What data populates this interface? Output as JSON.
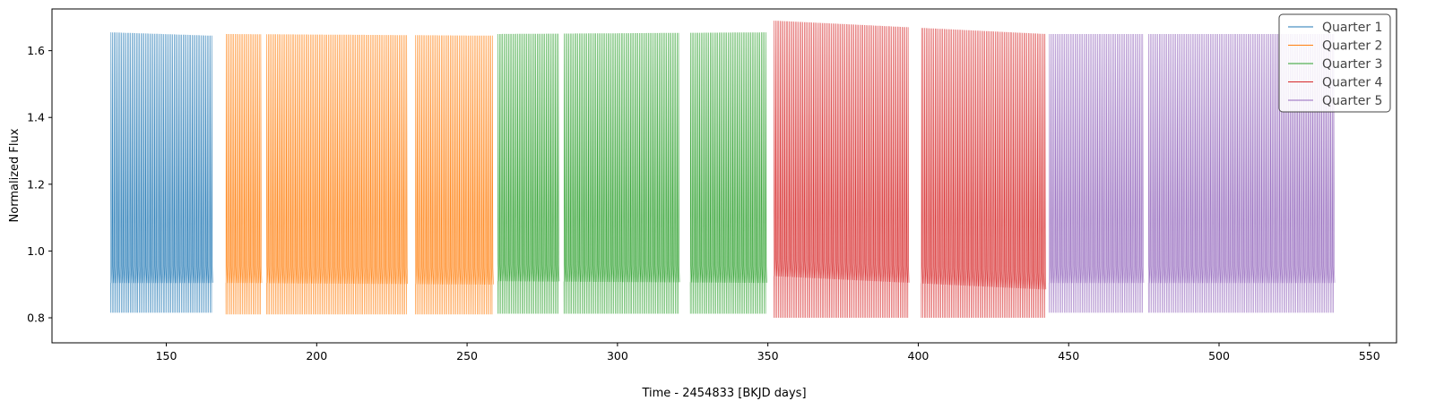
{
  "chart_data": {
    "type": "line",
    "title": "",
    "xlabel": "Time - 2454833 [BKJD days]",
    "ylabel": "Normalized Flux",
    "xlim": [
      112,
      559
    ],
    "ylim": [
      0.725,
      1.725
    ],
    "xticks": [
      150,
      200,
      250,
      300,
      350,
      400,
      450,
      500,
      550
    ],
    "yticks": [
      0.8,
      1.0,
      1.2,
      1.4,
      1.6
    ],
    "ytick_labels": [
      "0.8",
      "1.0",
      "1.2",
      "1.4",
      "1.6"
    ],
    "grid": false,
    "legend_position": "top-right",
    "signal": {
      "description_period_days": 0.5
    },
    "series": [
      {
        "name": "Quarter 1",
        "color": "#1f77b4",
        "time_range": [
          131.5,
          165.0
        ],
        "gaps": [],
        "max_flux": [
          1.655,
          1.645
        ],
        "min_flux": 0.815,
        "plateau_flux": [
          0.905,
          0.905
        ]
      },
      {
        "name": "Quarter 2",
        "color": "#ff7f0e",
        "time_range": [
          169.8,
          258.5
        ],
        "gaps": [
          [
            181.5,
            183.0
          ],
          [
            230.0,
            232.5
          ]
        ],
        "max_flux": [
          1.65,
          1.645
        ],
        "min_flux": 0.81,
        "plateau_flux": [
          0.905,
          0.9
        ]
      },
      {
        "name": "Quarter 3",
        "color": "#2ca02c",
        "time_range": [
          260.2,
          349.5
        ],
        "gaps": [
          [
            280.5,
            282.0
          ],
          [
            320.5,
            324.0
          ]
        ],
        "max_flux": [
          1.65,
          1.655
        ],
        "min_flux": 0.812,
        "plateau_flux": [
          0.91,
          0.905
        ]
      },
      {
        "name": "Quarter 4",
        "color": "#d62728",
        "time_range": [
          352.0,
          442.2
        ],
        "gaps": [
          [
            396.5,
            401.0
          ]
        ],
        "max_flux": [
          1.69,
          1.65
        ],
        "min_flux": 0.8,
        "plateau_flux": [
          0.925,
          0.885
        ]
      },
      {
        "name": "Quarter 5",
        "color": "#9467bd",
        "time_range": [
          443.5,
          538.0
        ],
        "gaps": [
          [
            474.5,
            476.5
          ]
        ],
        "max_flux": [
          1.65,
          1.65
        ],
        "min_flux": 0.815,
        "plateau_flux": [
          0.905,
          0.905
        ]
      }
    ]
  }
}
